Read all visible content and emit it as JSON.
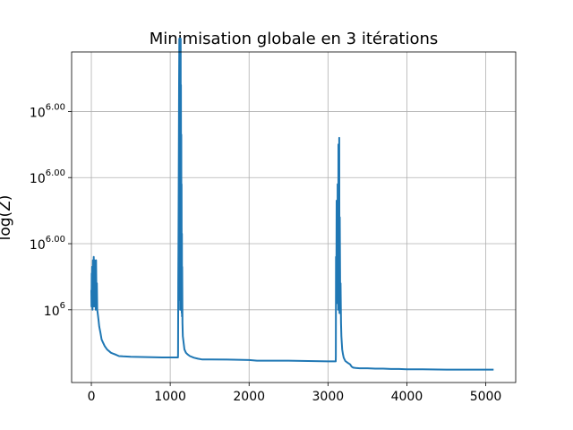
{
  "chart_data": {
    "type": "line",
    "title": "Minimisation globale en 3 itérations",
    "xlabel": "",
    "ylabel": "log(Z)",
    "xlim": [
      -250,
      5380
    ],
    "ylim": [
      0,
      1
    ],
    "grid": true,
    "color": "#1f77b4",
    "x_ticks": [
      {
        "value": 0,
        "label": "0"
      },
      {
        "value": 1000,
        "label": "1000"
      },
      {
        "value": 2000,
        "label": "2000"
      },
      {
        "value": 3000,
        "label": "3000"
      },
      {
        "value": 4000,
        "label": "4000"
      },
      {
        "value": 5000,
        "label": "5000"
      }
    ],
    "y_ticks": [
      {
        "value": 0.82,
        "base": "10",
        "exp": "6.00"
      },
      {
        "value": 0.62,
        "base": "10",
        "exp": "6.00"
      },
      {
        "value": 0.42,
        "base": "10",
        "exp": "6.00"
      },
      {
        "value": 0.22,
        "base": "10",
        "exp": "6"
      }
    ],
    "series": [
      {
        "x": [
          0,
          2,
          4,
          6,
          10,
          15,
          20,
          25,
          30,
          35,
          40,
          45,
          50,
          55,
          60,
          65,
          70,
          75,
          80,
          90,
          100,
          115,
          130,
          150,
          170,
          200,
          250,
          300,
          350,
          400,
          500,
          700,
          900,
          1000,
          1099,
          1100,
          1102,
          1104,
          1108,
          1112,
          1116,
          1118,
          1120,
          1122,
          1124,
          1126,
          1128,
          1130,
          1132,
          1134,
          1136,
          1138,
          1140,
          1142,
          1144,
          1146,
          1148,
          1150,
          1152,
          1155,
          1160,
          1170,
          1180,
          1200,
          1220,
          1250,
          1300,
          1350,
          1400,
          1500,
          1800,
          2000,
          2100,
          2500,
          3000,
          3099,
          3100,
          3102,
          3106,
          3110,
          3114,
          3118,
          3120,
          3122,
          3125,
          3128,
          3130,
          3132,
          3135,
          3138,
          3140,
          3143,
          3146,
          3150,
          3155,
          3160,
          3165,
          3170,
          3180,
          3190,
          3200,
          3220,
          3250,
          3280,
          3300,
          3320,
          3350,
          3400,
          3500,
          3600,
          3700,
          3800,
          3900,
          4000,
          4100,
          4200,
          4500,
          5000,
          5100
        ],
        "y": [
          0.28,
          0.23,
          0.33,
          0.25,
          0.35,
          0.22,
          0.37,
          0.24,
          0.38,
          0.23,
          0.37,
          0.25,
          0.36,
          0.22,
          0.37,
          0.24,
          0.3,
          0.22,
          0.21,
          0.19,
          0.17,
          0.15,
          0.13,
          0.12,
          0.11,
          0.1,
          0.09,
          0.085,
          0.08,
          0.079,
          0.078,
          0.077,
          0.076,
          0.076,
          0.076,
          0.09,
          0.3,
          0.4,
          0.6,
          0.9,
          1.04,
          0.25,
          1.04,
          0.3,
          1.04,
          0.22,
          1.04,
          0.35,
          1.04,
          0.28,
          0.9,
          0.24,
          0.75,
          0.22,
          0.6,
          0.21,
          0.45,
          0.2,
          0.35,
          0.18,
          0.14,
          0.12,
          0.1,
          0.09,
          0.085,
          0.08,
          0.075,
          0.072,
          0.07,
          0.07,
          0.069,
          0.068,
          0.066,
          0.066,
          0.064,
          0.064,
          0.08,
          0.38,
          0.28,
          0.55,
          0.24,
          0.5,
          0.28,
          0.6,
          0.24,
          0.58,
          0.22,
          0.72,
          0.26,
          0.6,
          0.22,
          0.74,
          0.21,
          0.5,
          0.25,
          0.3,
          0.18,
          0.14,
          0.1,
          0.085,
          0.075,
          0.065,
          0.06,
          0.055,
          0.048,
          0.045,
          0.044,
          0.043,
          0.043,
          0.042,
          0.042,
          0.041,
          0.041,
          0.04,
          0.04,
          0.04,
          0.039,
          0.039,
          0.039
        ]
      }
    ]
  }
}
